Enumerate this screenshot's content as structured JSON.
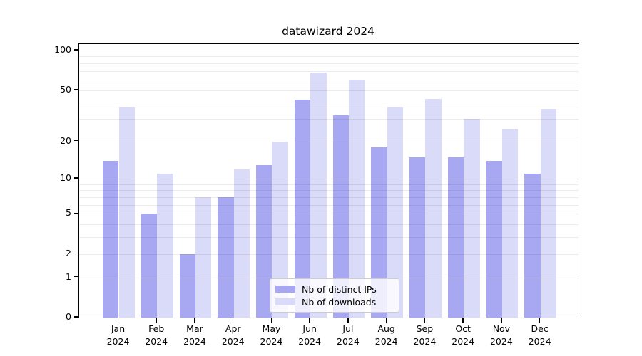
{
  "title": "datawizard 2024",
  "chart_data": {
    "type": "bar",
    "title": "datawizard 2024",
    "categories": [
      "Jan",
      "Feb",
      "Mar",
      "Apr",
      "May",
      "Jun",
      "Jul",
      "Aug",
      "Sep",
      "Oct",
      "Nov",
      "Dec"
    ],
    "year_label": "2024",
    "series": [
      {
        "name": "Nb of distinct IPs",
        "color": "#a8a8f2",
        "values": [
          14,
          5,
          2,
          7,
          13,
          42,
          32,
          18,
          15,
          15,
          14,
          11
        ]
      },
      {
        "name": "Nb of downloads",
        "color": "#dadaf9",
        "values": [
          37,
          11,
          7,
          12,
          20,
          68,
          60,
          37,
          43,
          30,
          25,
          36
        ]
      }
    ],
    "yscale": "log1p",
    "ylim": [
      0,
      113
    ],
    "yticks": [
      0,
      1,
      2,
      5,
      10,
      20,
      50,
      100
    ],
    "grid_major": [
      1,
      10,
      100
    ],
    "grid_minor": [
      2,
      3,
      4,
      5,
      6,
      7,
      8,
      9,
      20,
      30,
      40,
      50,
      60,
      70,
      80,
      90
    ],
    "grid_major_color": "#bababa",
    "grid_minor_color": "#ececec",
    "grid_on_top": true,
    "legend_position": "lower center",
    "xlabel": "",
    "ylabel": ""
  }
}
